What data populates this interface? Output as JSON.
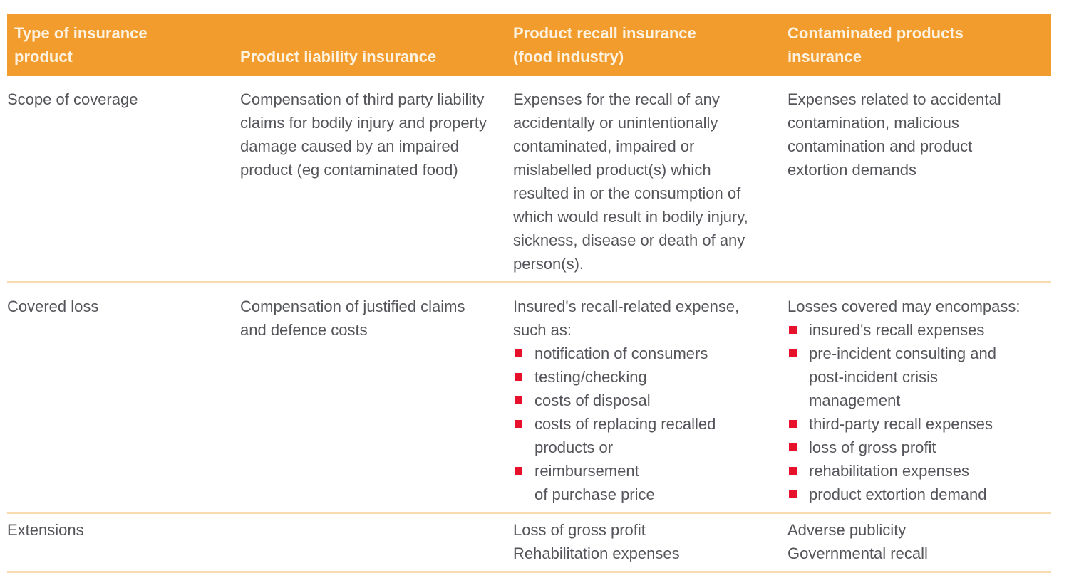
{
  "document": {
    "description": "Comparison table of insurance product types",
    "colors": {
      "header_background": "#f39c2e",
      "header_text": "#fcf2df",
      "body_text": "#54555a",
      "row_divider": "#f8dcae",
      "bullet_square": "#e8112b"
    },
    "header": {
      "type_col": "Type of insurance\nproduct",
      "liability_col": "Product liability insurance",
      "recall_col": "Product recall insurance\n(food industry)",
      "contaminated_col": "Contaminated products\ninsurance"
    },
    "rows": {
      "scope": {
        "label": "Scope of coverage",
        "liability": "Compensation of third party liability claims for bodily injury and property damage caused by an impaired product (eg contaminated food)",
        "recall": "Expenses for the recall of any accidentally or unintentionally contaminated, impaired or mislabelled product(s) which resulted in or the consumption of which would result in bodily injury, sickness, disease or death of any person(s).",
        "contaminated": "Expenses related to accidental contamination, malicious contamination and product extortion demands"
      },
      "covered_loss": {
        "label": "Covered loss",
        "liability": "Compensation of justified claims and defence costs",
        "recall_intro": "Insured's recall-related expense,\nsuch as:",
        "recall_bullets": [
          "notification of consumers",
          "testing/checking",
          "costs of disposal",
          "costs of replacing recalled products or",
          "reimbursement\nof purchase price"
        ],
        "contaminated_intro": "Losses covered may encompass:",
        "contaminated_bullets": [
          "insured's recall expenses",
          "pre-incident consulting and\npost-incident crisis\nmanagement",
          "third-party recall expenses",
          "loss of gross profit",
          "rehabilitation expenses",
          "product extortion demand"
        ]
      },
      "extensions": {
        "label": "Extensions",
        "liability": "",
        "recall_lines": [
          "Loss of gross profit",
          "Rehabilitation expenses"
        ],
        "contaminated_lines": [
          "Adverse publicity",
          "Governmental recall"
        ]
      }
    }
  }
}
